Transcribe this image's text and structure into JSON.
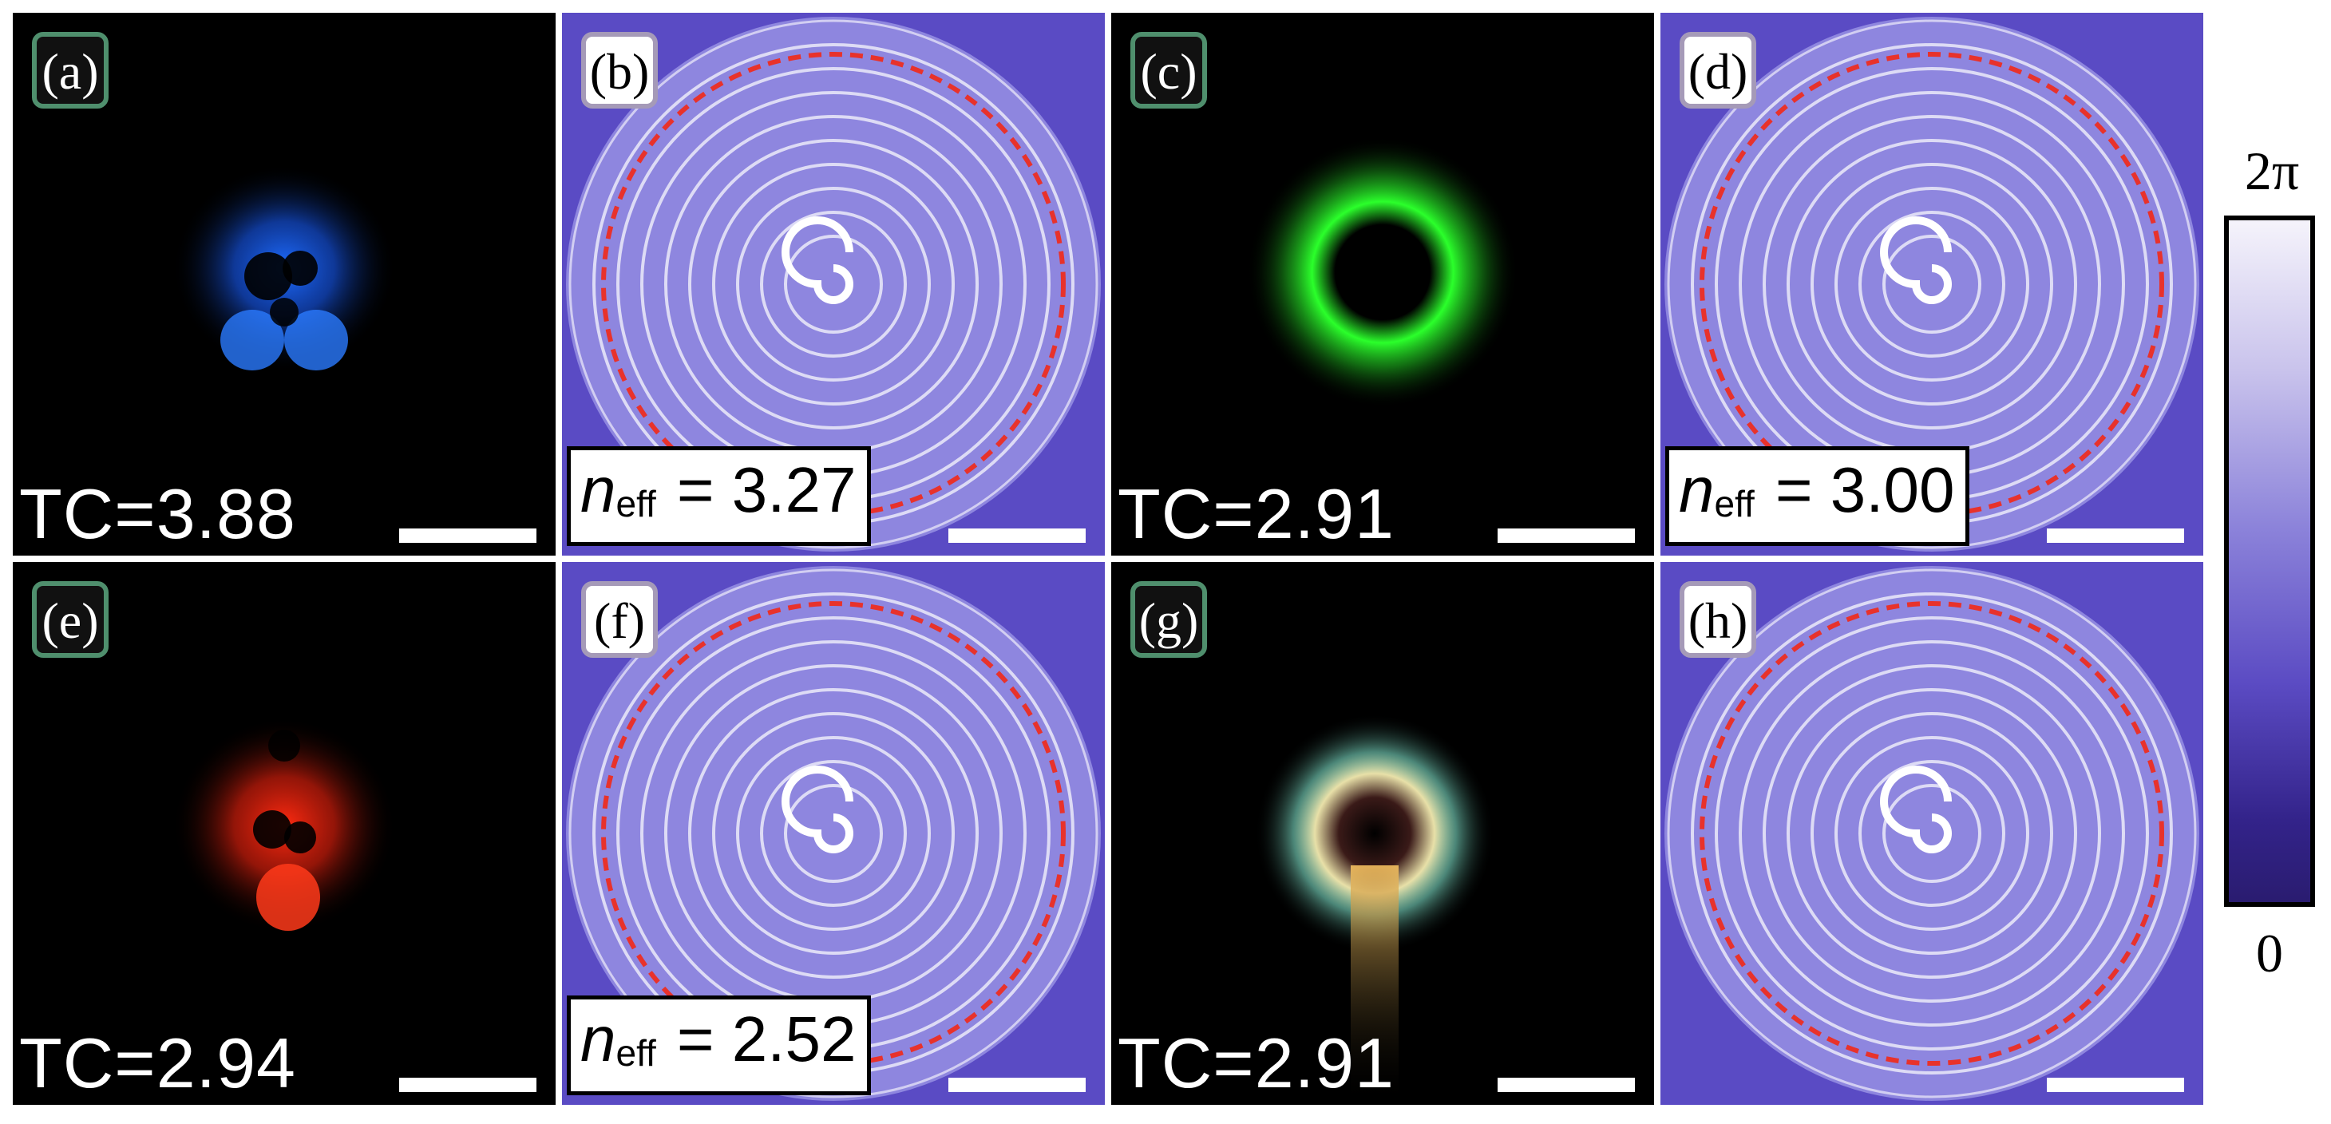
{
  "panels": {
    "a": {
      "label": "(a)",
      "tc": "TC=3.88"
    },
    "b": {
      "label": "(b)",
      "neff_symbol": "n",
      "neff_sub": "eff",
      "neff_value": "= 3.27"
    },
    "c": {
      "label": "(c)",
      "tc": "TC=2.91"
    },
    "d": {
      "label": "(d)",
      "neff_symbol": "n",
      "neff_sub": "eff",
      "neff_value": "= 3.00"
    },
    "e": {
      "label": "(e)",
      "tc": "TC=2.94"
    },
    "f": {
      "label": "(f)",
      "neff_symbol": "n",
      "neff_sub": "eff",
      "neff_value": "= 2.52"
    },
    "g": {
      "label": "(g)",
      "tc": "TC=2.91"
    },
    "h": {
      "label": "(h)"
    }
  },
  "colorbar": {
    "max_label": "2π",
    "min_label": "0"
  },
  "colors": {
    "blue_beam": "#1e6cff",
    "green_beam": "#2bff2b",
    "red_beam": "#ff2a10",
    "phase_light": "#f3f1fb",
    "phase_dark": "#3a2aa0",
    "ring_dash": "#e8322b",
    "label_border_dark": "#4f8f6d",
    "label_border_light": "#a59ab8"
  }
}
